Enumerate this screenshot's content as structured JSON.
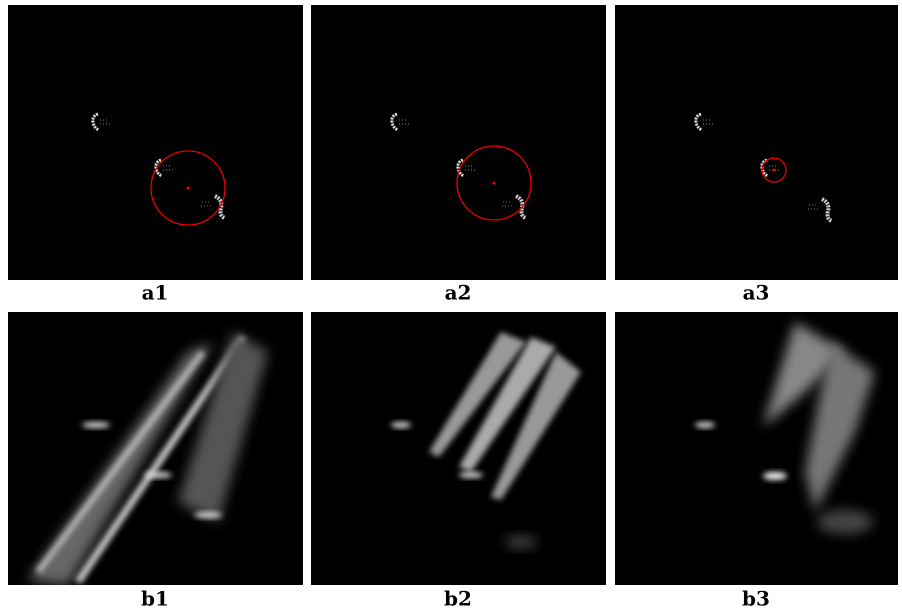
{
  "panels": [
    {
      "label": "a1"
    },
    {
      "label": "a2"
    },
    {
      "label": "a3"
    },
    {
      "label": "b1"
    },
    {
      "label": "b2"
    },
    {
      "label": "b3"
    }
  ]
}
